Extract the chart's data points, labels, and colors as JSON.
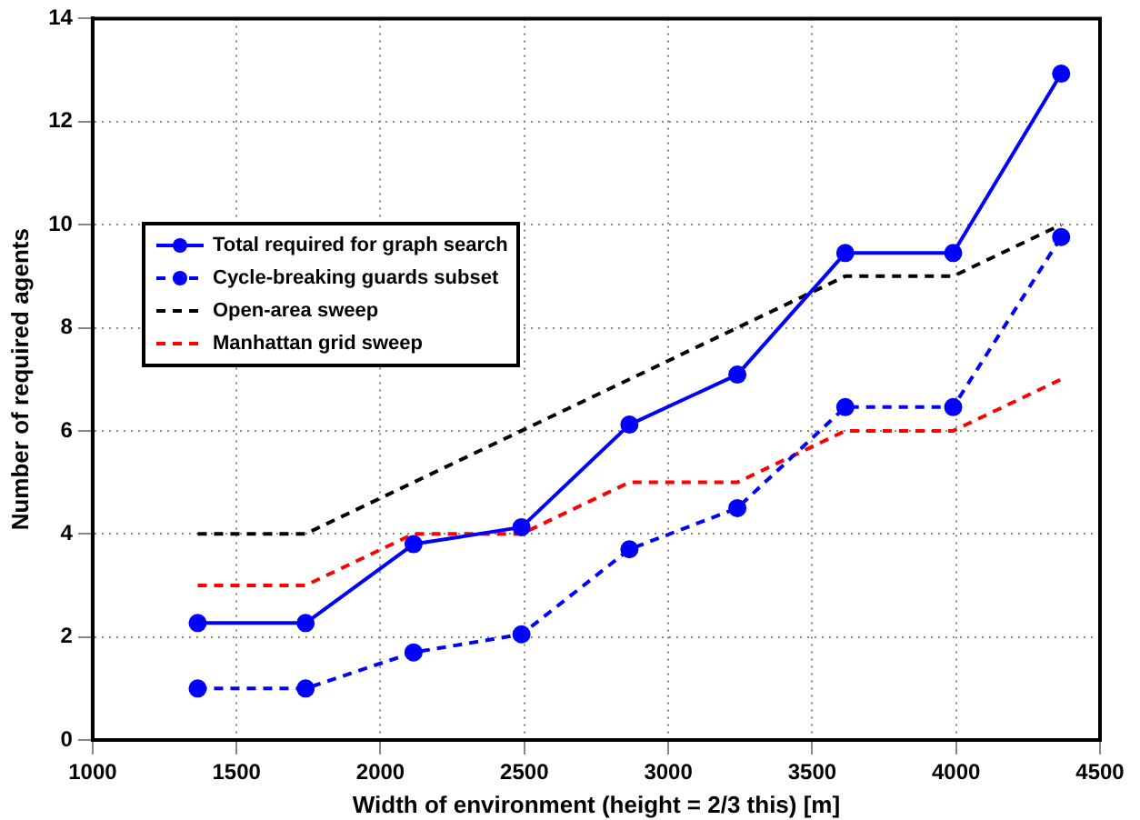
{
  "chart_data": {
    "type": "line",
    "xlabel": "Width of environment (height = 2/3 this) [m]",
    "ylabel": "Number of required agents",
    "x": [
      1365,
      1740,
      2115,
      2490,
      2865,
      3240,
      3615,
      3990,
      4365
    ],
    "series": [
      {
        "name": "Total required for graph search",
        "color": "#0000ff",
        "marker": "circle",
        "line_style": "solid",
        "values": [
          2.27,
          2.27,
          3.8,
          4.13,
          6.12,
          7.09,
          9.45,
          9.45,
          12.93
        ]
      },
      {
        "name": "Cycle-breaking guards subset",
        "color": "#0000ff",
        "marker": "circle",
        "line_style": "dashed",
        "values": [
          1,
          1,
          1.7,
          2.05,
          3.7,
          4.5,
          6.46,
          6.46,
          9.76
        ]
      },
      {
        "name": "Open-area sweep",
        "color": "#000000",
        "marker": "none",
        "line_style": "dashed",
        "values": [
          4,
          4,
          5,
          6,
          7,
          8,
          9,
          9,
          10
        ]
      },
      {
        "name": "Manhattan grid sweep",
        "color": "#ff0000",
        "marker": "none",
        "line_style": "dashed",
        "values": [
          3,
          3,
          4,
          4,
          5,
          5,
          6,
          6,
          7
        ]
      }
    ],
    "xlim": [
      1000,
      4500
    ],
    "xticks": [
      1000,
      1500,
      2000,
      2500,
      3000,
      3500,
      4000,
      4500
    ],
    "ylim": [
      0,
      14
    ],
    "yticks": [
      0,
      2,
      4,
      6,
      8,
      10,
      12,
      14
    ],
    "grid": true,
    "legend": "top left"
  }
}
